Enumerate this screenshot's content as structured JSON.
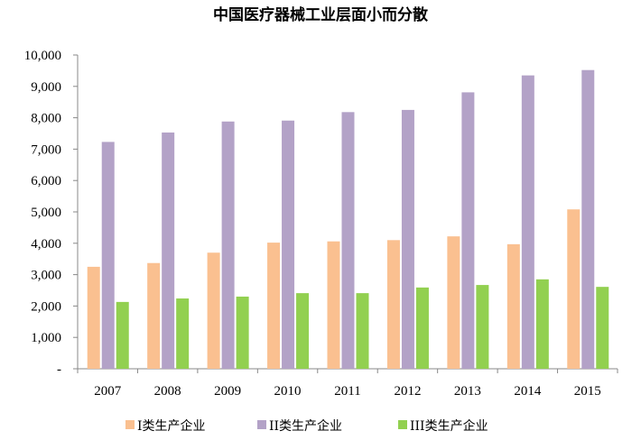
{
  "chart_data": {
    "type": "bar",
    "title": "中国医疗器械工业层面小而分散",
    "categories": [
      "2007",
      "2008",
      "2009",
      "2010",
      "2011",
      "2012",
      "2013",
      "2014",
      "2015"
    ],
    "series": [
      {
        "name": "I类生产企业",
        "color": "#FAC090",
        "values": [
          3250,
          3370,
          3700,
          4020,
          4060,
          4100,
          4220,
          3970,
          5080
        ]
      },
      {
        "name": "II类生产企业",
        "color": "#B3A2C7",
        "values": [
          7230,
          7530,
          7880,
          7910,
          8180,
          8250,
          8810,
          9350,
          9520
        ]
      },
      {
        "name": "III类生产企业",
        "color": "#92D050",
        "values": [
          2130,
          2240,
          2300,
          2410,
          2410,
          2590,
          2670,
          2850,
          2610
        ]
      }
    ],
    "ylim": [
      0,
      10000
    ],
    "yticks": [
      0,
      1000,
      2000,
      3000,
      4000,
      5000,
      6000,
      7000,
      8000,
      9000,
      10000
    ],
    "ytick_labels": [
      "-",
      "1,000",
      "2,000",
      "3,000",
      "4,000",
      "5,000",
      "6,000",
      "7,000",
      "8,000",
      "9,000",
      "10,000"
    ],
    "xlabel": "",
    "ylabel": "",
    "grid": false,
    "legend_position": "bottom"
  }
}
